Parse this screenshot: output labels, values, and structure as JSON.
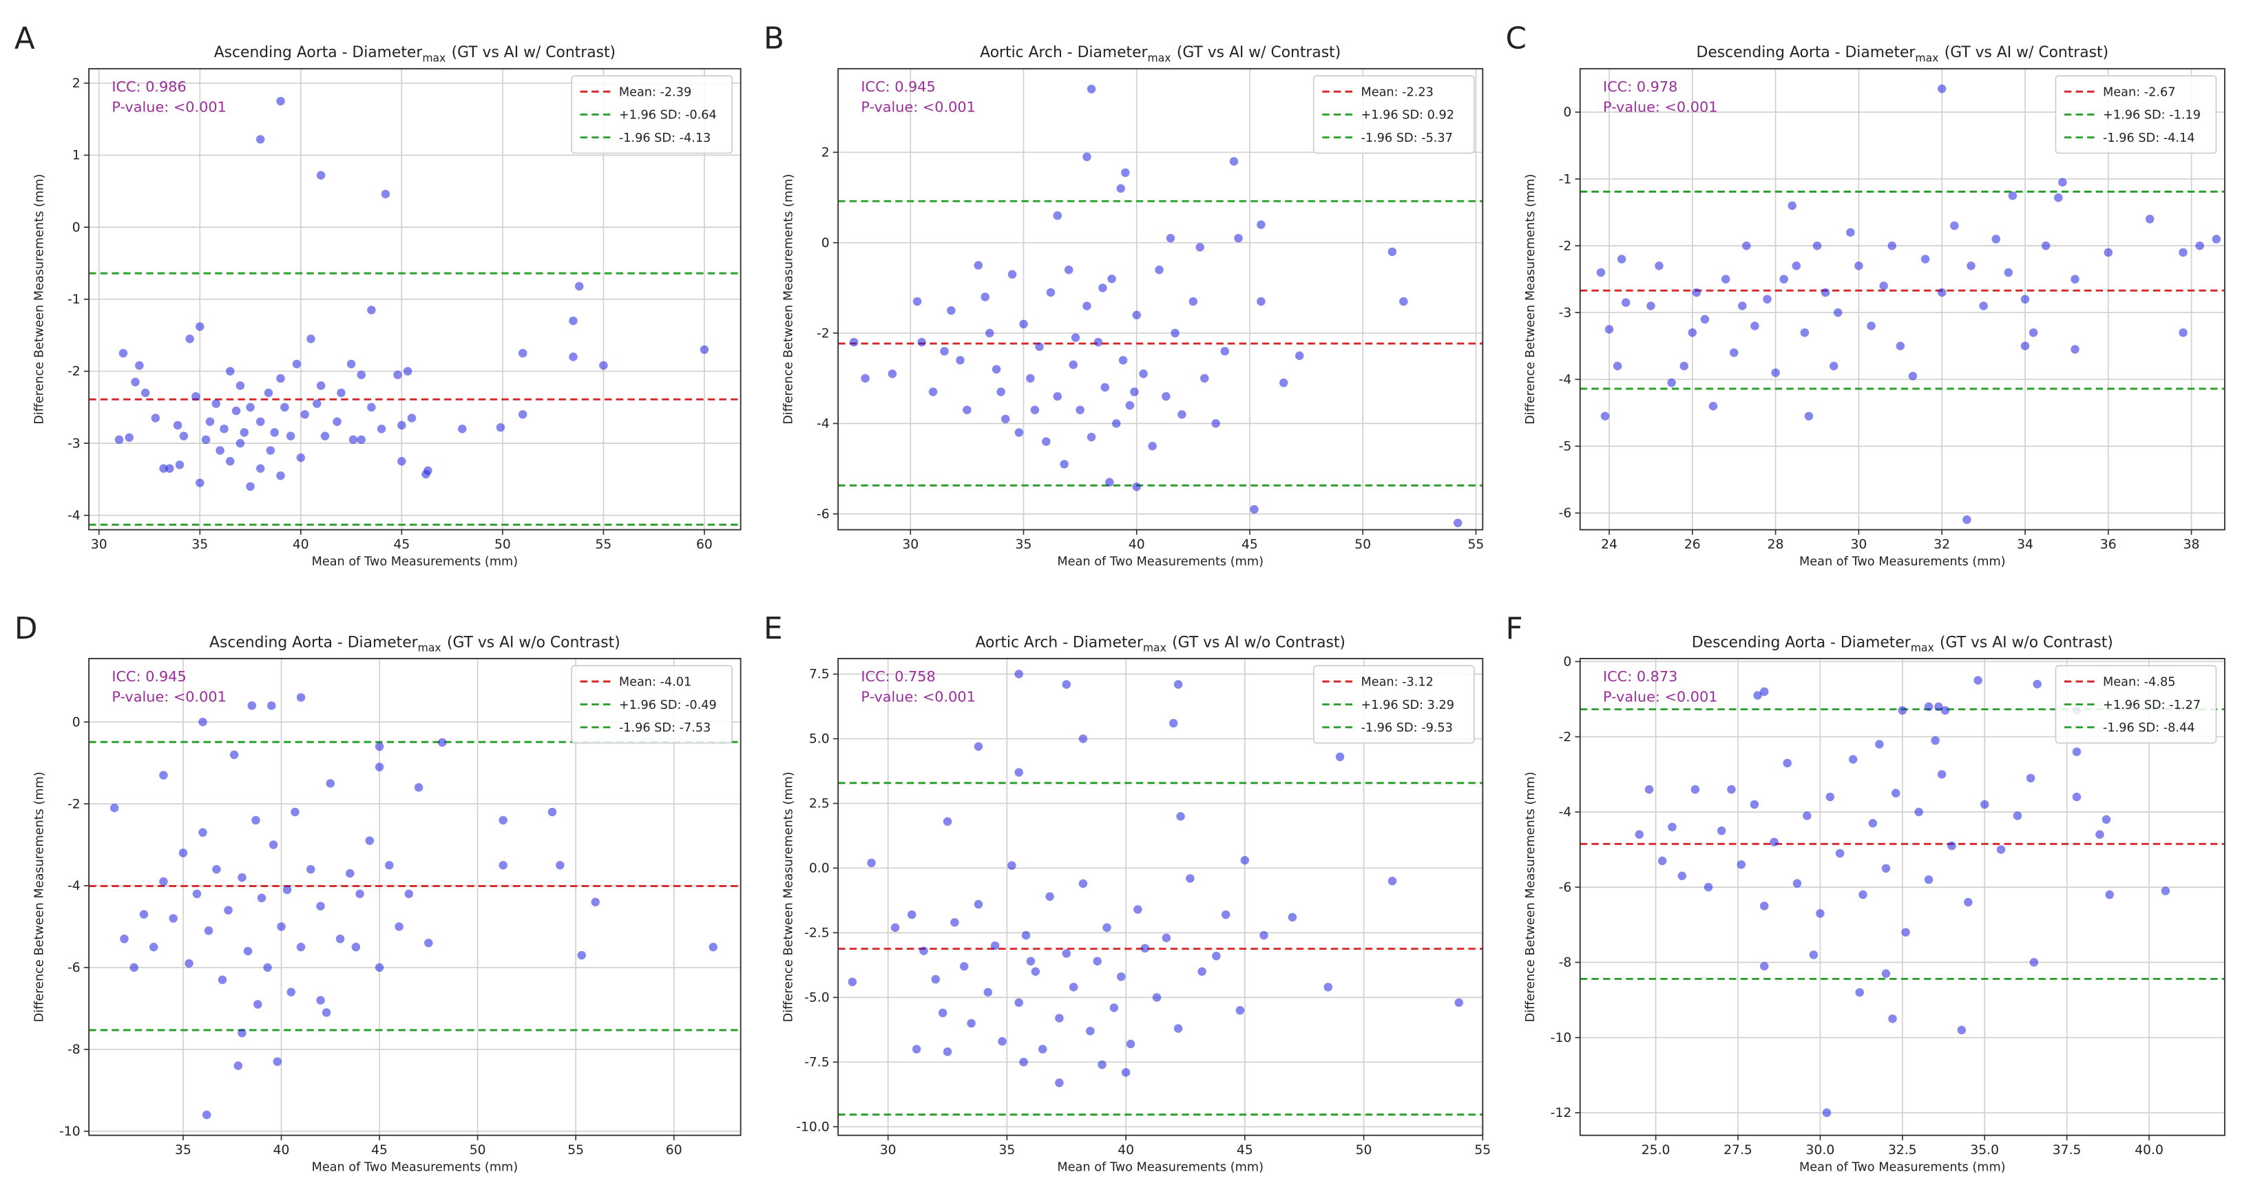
{
  "chart_data": [
    {
      "type": "scatter",
      "panel_label": "A",
      "title": "Ascending Aorta - Diameter",
      "title_subscript": "max",
      "title_suffix": "(GT vs AI w/ Contrast)",
      "x_label": "Mean of Two Measurements (mm)",
      "y_label": "Difference Between Measurements (mm)",
      "annotations": [
        "ICC: 0.986",
        "P-value: <0.001"
      ],
      "grid": true,
      "legend": "upper right",
      "color": "#2020e0",
      "xlim": [
        29.5,
        61.8
      ],
      "ylim": [
        -4.2,
        2.2
      ],
      "xticks": [
        30,
        35,
        40,
        45,
        50,
        55,
        60
      ],
      "yticks": [
        -4,
        -3,
        -2,
        -1,
        0,
        1,
        2
      ],
      "reference_lines": [
        {
          "name": "Mean: -2.39",
          "value": -2.39,
          "color": "#d62728"
        },
        {
          "name": "+1.96 SD: -0.64",
          "value": -0.64,
          "color": "#2ca02c"
        },
        {
          "name": "-1.96 SD: -4.13",
          "value": -4.13,
          "color": "#2ca02c"
        }
      ],
      "x": [
        38,
        39,
        41,
        44.2,
        53.8,
        53.5,
        43.5,
        60,
        55,
        51,
        53.5,
        51,
        49.9,
        48,
        46.3,
        46.2,
        45,
        34.5,
        35,
        31.2,
        32,
        31.8,
        32.3,
        31,
        31.5,
        32.8,
        33.2,
        33.5,
        34,
        35,
        35.3,
        36,
        36.5,
        37,
        37.5,
        38,
        38.5,
        39,
        39.5,
        40,
        34.8,
        35.8,
        36.5,
        37,
        37.5,
        38,
        38.4,
        39,
        39.2,
        39.8,
        40.5,
        41,
        41.8,
        42,
        42.5,
        43,
        43.5,
        44,
        44.8,
        45.3,
        45.5,
        45,
        36.2,
        37.2,
        38.7,
        40.2,
        41.2,
        43,
        33.9,
        34.2,
        35.5,
        36.8,
        40.8,
        42.6
      ],
      "values": [
        1.22,
        1.75,
        0.72,
        0.46,
        -0.82,
        -1.3,
        -1.15,
        -1.7,
        -1.92,
        -1.75,
        -1.8,
        -2.6,
        -2.78,
        -2.8,
        -3.38,
        -3.43,
        -3.25,
        -1.55,
        -1.38,
        -1.75,
        -1.92,
        -2.15,
        -2.3,
        -2.95,
        -2.92,
        -2.65,
        -3.35,
        -3.35,
        -3.3,
        -3.55,
        -2.95,
        -3.1,
        -3.25,
        -3,
        -3.6,
        -3.35,
        -3.1,
        -3.45,
        -2.9,
        -3.2,
        -2.35,
        -2.45,
        -2,
        -2.2,
        -2.5,
        -2.7,
        -2.3,
        -2.1,
        -2.5,
        -1.9,
        -1.55,
        -2.2,
        -2.7,
        -2.3,
        -1.9,
        -2.05,
        -2.5,
        -2.8,
        -2.05,
        -2,
        -2.65,
        -2.75,
        -2.8,
        -2.85,
        -2.85,
        -2.6,
        -2.9,
        -2.95,
        -2.75,
        -2.9,
        -2.7,
        -2.55,
        -2.45,
        -2.95
      ]
    },
    {
      "type": "scatter",
      "panel_label": "B",
      "title": "Aortic Arch - Diameter",
      "title_subscript": "max",
      "title_suffix": "(GT vs AI w/ Contrast)",
      "x_label": "Mean of Two Measurements (mm)",
      "y_label": "Difference Between Measurements (mm)",
      "annotations": [
        "ICC: 0.945",
        "P-value: <0.001"
      ],
      "grid": true,
      "legend": "upper right",
      "color": "#2020e0",
      "xlim": [
        26.8,
        55.3
      ],
      "ylim": [
        -6.35,
        3.85
      ],
      "xticks": [
        30,
        35,
        40,
        45,
        50,
        55
      ],
      "yticks": [
        -6,
        -4,
        -2,
        0,
        2
      ],
      "reference_lines": [
        {
          "name": "Mean: -2.23",
          "value": -2.23,
          "color": "#d62728"
        },
        {
          "name": "+1.96 SD: 0.92",
          "value": 0.92,
          "color": "#2ca02c"
        },
        {
          "name": "-1.96 SD: -5.37",
          "value": -5.37,
          "color": "#2ca02c"
        }
      ],
      "x": [
        38,
        37.8,
        39.5,
        39.3,
        44.3,
        36.5,
        41.5,
        42.8,
        44.5,
        45.5,
        45.5,
        51.3,
        51.8,
        47.2,
        46.5,
        45.2,
        54.2,
        40,
        38.8,
        27.5,
        28,
        29.2,
        30.3,
        30.5,
        31,
        31.5,
        31.8,
        32.2,
        32.5,
        33,
        33.3,
        33.8,
        34.2,
        34.5,
        34.8,
        35,
        35.3,
        35.7,
        36,
        36.2,
        36.5,
        36.8,
        37,
        37.2,
        37.5,
        37.8,
        38,
        38.3,
        38.6,
        38.9,
        39.1,
        39.4,
        39.7,
        40,
        40.3,
        40.7,
        41,
        41.3,
        41.7,
        42,
        42.5,
        43,
        43.5,
        43.9,
        33.5,
        34,
        35.5,
        37.3,
        38.5,
        39.9
      ],
      "values": [
        3.4,
        1.9,
        1.55,
        1.2,
        1.8,
        0.6,
        0.1,
        -0.1,
        0.1,
        0.4,
        -1.3,
        -0.2,
        -1.3,
        -2.5,
        -3.1,
        -5.9,
        -6.2,
        -5.4,
        -5.3,
        -2.2,
        -3,
        -2.9,
        -1.3,
        -2.2,
        -3.3,
        -2.4,
        -1.5,
        -2.6,
        -3.7,
        -0.5,
        -1.2,
        -2.8,
        -3.9,
        -0.7,
        -4.2,
        -1.8,
        -3,
        -2.3,
        -4.4,
        -1.1,
        -3.4,
        -4.9,
        -0.6,
        -2.7,
        -3.7,
        -1.4,
        -4.3,
        -2.2,
        -3.2,
        -0.8,
        -4,
        -2.6,
        -3.6,
        -1.6,
        -2.9,
        -4.5,
        -0.6,
        -3.4,
        -2,
        -3.8,
        -1.3,
        -3,
        -4,
        -2.4,
        -2,
        -3.3,
        -3.7,
        -2.1,
        -1,
        -3.3
      ]
    },
    {
      "type": "scatter",
      "panel_label": "C",
      "title": "Descending Aorta - Diameter",
      "title_subscript": "max",
      "title_suffix": "(GT vs AI w/ Contrast)",
      "x_label": "Mean of Two Measurements (mm)",
      "y_label": "Difference Between Measurements (mm)",
      "annotations": [
        "ICC: 0.978",
        "P-value: <0.001"
      ],
      "grid": true,
      "legend": "upper right",
      "color": "#2020e0",
      "xlim": [
        23.3,
        38.8
      ],
      "ylim": [
        -6.25,
        0.65
      ],
      "xticks": [
        24,
        26,
        28,
        30,
        32,
        34,
        36,
        38
      ],
      "yticks": [
        -6,
        -5,
        -4,
        -3,
        -2,
        -1,
        0
      ],
      "reference_lines": [
        {
          "name": "Mean: -2.67",
          "value": -2.67,
          "color": "#d62728"
        },
        {
          "name": "+1.96 SD: -1.19",
          "value": -1.19,
          "color": "#2ca02c"
        },
        {
          "name": "-1.96 SD: -4.14",
          "value": -4.14,
          "color": "#2ca02c"
        }
      ],
      "x": [
        32,
        34.9,
        34.8,
        33.7,
        37,
        38.2,
        37.8,
        38.6,
        37.8,
        36,
        35.2,
        35.2,
        34.2,
        34,
        32.6,
        28.8,
        23.9,
        24,
        24.2,
        23.8,
        24.3,
        24.4,
        25,
        25.2,
        25.5,
        25.8,
        26.1,
        26.3,
        26.5,
        26.8,
        27,
        27.3,
        27.5,
        27.8,
        28,
        28.2,
        28.4,
        28.7,
        29,
        29.2,
        29.5,
        29.8,
        30,
        30.3,
        30.6,
        31,
        31.3,
        31.6,
        32,
        32.3,
        32.7,
        33,
        33.3,
        33.6,
        34,
        34.5,
        28.5,
        27.2,
        26,
        30.8,
        29.4
      ],
      "values": [
        0.35,
        -1.05,
        -1.28,
        -1.25,
        -1.6,
        -2,
        -2.1,
        -1.9,
        -3.3,
        -2.1,
        -2.5,
        -3.55,
        -3.3,
        -3.5,
        -6.1,
        -4.55,
        -4.55,
        -3.25,
        -3.8,
        -2.4,
        -2.2,
        -2.85,
        -2.9,
        -2.3,
        -4.05,
        -3.8,
        -2.7,
        -3.1,
        -4.4,
        -2.5,
        -3.6,
        -2,
        -3.2,
        -2.8,
        -3.9,
        -2.5,
        -1.4,
        -3.3,
        -2,
        -2.7,
        -3,
        -1.8,
        -2.3,
        -3.2,
        -2.6,
        -3.5,
        -3.95,
        -2.2,
        -2.7,
        -1.7,
        -2.3,
        -2.9,
        -1.9,
        -2.4,
        -2.8,
        -2,
        -2.3,
        -2.9,
        -3.3,
        -2,
        -3.8
      ]
    },
    {
      "type": "scatter",
      "panel_label": "D",
      "title": "Ascending Aorta - Diameter",
      "title_subscript": "max",
      "title_suffix": "(GT vs AI w/o Contrast)",
      "x_label": "Mean of Two Measurements (mm)",
      "y_label": "Difference Between Measurements (mm)",
      "annotations": [
        "ICC: 0.945",
        "P-value: <0.001"
      ],
      "grid": true,
      "legend": "upper right",
      "color": "#2020e0",
      "xlim": [
        30.2,
        63.4
      ],
      "ylim": [
        -10.1,
        1.55
      ],
      "xticks": [
        35,
        40,
        45,
        50,
        55,
        60
      ],
      "yticks": [
        -10,
        -8,
        -6,
        -4,
        -2,
        0
      ],
      "reference_lines": [
        {
          "name": "Mean: -4.01",
          "value": -4.01,
          "color": "#d62728"
        },
        {
          "name": "+1.96 SD: -0.49",
          "value": -0.49,
          "color": "#2ca02c"
        },
        {
          "name": "-1.96 SD: -7.53",
          "value": -7.53,
          "color": "#2ca02c"
        }
      ],
      "x": [
        39.5,
        41,
        38.5,
        36,
        48.2,
        45,
        45,
        34,
        31.5,
        47,
        51.3,
        53.8,
        51.3,
        54.2,
        56,
        55.3,
        62,
        45,
        42,
        42.3,
        38,
        37.8,
        39.8,
        36.2,
        32,
        32.5,
        33,
        33.5,
        34,
        34.5,
        35,
        35.3,
        35.7,
        36,
        36.3,
        36.7,
        37,
        37.3,
        37.6,
        38,
        38.3,
        38.7,
        39,
        39.3,
        39.6,
        40,
        40.3,
        40.7,
        41,
        41.5,
        42,
        42.5,
        43,
        43.5,
        44,
        44.5,
        45.5,
        46,
        46.5,
        47.5,
        40.5,
        38.8,
        43.8
      ],
      "values": [
        0.4,
        0.6,
        0.4,
        0,
        -0.5,
        -0.6,
        -1.1,
        -1.3,
        -2.1,
        -1.6,
        -2.4,
        -2.2,
        -3.5,
        -3.5,
        -4.4,
        -5.7,
        -5.5,
        -6,
        -6.8,
        -7.1,
        -7.6,
        -8.4,
        -8.3,
        -9.6,
        -5.3,
        -6,
        -4.7,
        -5.5,
        -3.9,
        -4.8,
        -3.2,
        -5.9,
        -4.2,
        -2.7,
        -5.1,
        -3.6,
        -6.3,
        -4.6,
        -0.8,
        -3.8,
        -5.6,
        -2.4,
        -4.3,
        -6,
        -3,
        -5,
        -4.1,
        -2.2,
        -5.5,
        -3.6,
        -4.5,
        -1.5,
        -5.3,
        -3.7,
        -4.2,
        -2.9,
        -3.5,
        -5,
        -4.2,
        -5.4,
        -6.6,
        -6.9,
        -5.5
      ]
    },
    {
      "type": "scatter",
      "panel_label": "E",
      "title": "Aortic Arch - Diameter",
      "title_subscript": "max",
      "title_suffix": "(GT vs AI w/o Contrast)",
      "x_label": "Mean of Two Measurements (mm)",
      "y_label": "Difference Between Measurements (mm)",
      "annotations": [
        "ICC: 0.758",
        "P-value: <0.001"
      ],
      "grid": true,
      "legend": "upper right",
      "color": "#2020e0",
      "xlim": [
        27.9,
        55
      ],
      "ylim": [
        -10.33,
        8.1
      ],
      "xticks": [
        30,
        35,
        40,
        45,
        50,
        55
      ],
      "yticks": [
        {
          "value": -10,
          "label": "-10.0"
        },
        {
          "value": -7.5,
          "label": "-7.5"
        },
        {
          "value": -5,
          "label": "-5.0"
        },
        {
          "value": -2.5,
          "label": "-2.5"
        },
        {
          "value": 0,
          "label": "0.0"
        },
        {
          "value": 2.5,
          "label": "2.5"
        },
        {
          "value": 5,
          "label": "5.0"
        },
        {
          "value": 7.5,
          "label": "7.5"
        }
      ],
      "reference_lines": [
        {
          "name": "Mean: -3.12",
          "value": -3.12,
          "color": "#d62728"
        },
        {
          "name": "+1.96 SD: 3.29",
          "value": 3.29,
          "color": "#2ca02c"
        },
        {
          "name": "-1.96 SD: -9.53",
          "value": -9.53,
          "color": "#2ca02c"
        }
      ],
      "x": [
        35.5,
        37.5,
        42.2,
        38.2,
        42,
        49,
        33.8,
        35.5,
        32.5,
        29.3,
        30.3,
        28.5,
        31.2,
        32.5,
        35.7,
        37.2,
        40,
        45,
        45.8,
        47,
        51.2,
        54,
        48.5,
        44.2,
        42.3,
        31,
        31.5,
        32,
        32.3,
        32.8,
        33.2,
        33.5,
        33.8,
        34.2,
        34.5,
        34.8,
        35.2,
        35.5,
        35.8,
        36.2,
        36.5,
        36.8,
        37.2,
        37.5,
        37.8,
        38.2,
        38.5,
        38.8,
        39.2,
        39.5,
        39.8,
        40.2,
        40.5,
        40.8,
        41.3,
        41.7,
        42.2,
        42.7,
        43.2,
        43.8,
        44.8,
        36,
        39
      ],
      "values": [
        7.5,
        7.1,
        7.1,
        5,
        5.6,
        4.3,
        4.7,
        3.7,
        1.8,
        0.2,
        -2.3,
        -4.4,
        -7,
        -7.1,
        -7.5,
        -8.3,
        -7.9,
        0.3,
        -2.6,
        -1.9,
        -0.5,
        -5.2,
        -4.6,
        -1.8,
        2,
        -1.8,
        -3.2,
        -4.3,
        -5.6,
        -2.1,
        -3.8,
        -6,
        -1.4,
        -4.8,
        -3,
        -6.7,
        0.1,
        -5.2,
        -2.6,
        -4,
        -7,
        -1.1,
        -5.8,
        -3.3,
        -4.6,
        -0.6,
        -6.3,
        -3.6,
        -2.3,
        -5.4,
        -4.2,
        -6.8,
        -1.6,
        -3.1,
        -5,
        -2.7,
        -6.2,
        -0.4,
        -4,
        -3.4,
        -5.5,
        -3.6,
        -7.6
      ]
    },
    {
      "type": "scatter",
      "panel_label": "F",
      "title": "Descending Aorta - Diameter",
      "title_subscript": "max",
      "title_suffix": "(GT vs AI w/o Contrast)",
      "x_label": "Mean of Two Measurements (mm)",
      "y_label": "Difference Between Measurements (mm)",
      "annotations": [
        "ICC: 0.873",
        "P-value: <0.001"
      ],
      "grid": true,
      "legend": "upper right",
      "color": "#2020e0",
      "xlim": [
        22.7,
        42.3
      ],
      "ylim": [
        -12.6,
        0.08
      ],
      "xticks": [
        {
          "value": 25,
          "label": "25.0"
        },
        {
          "value": 27.5,
          "label": "27.5"
        },
        {
          "value": 30,
          "label": "30.0"
        },
        {
          "value": 32.5,
          "label": "32.5"
        },
        {
          "value": 35,
          "label": "35.0"
        },
        {
          "value": 37.5,
          "label": "37.5"
        },
        {
          "value": 40,
          "label": "40.0"
        }
      ],
      "yticks": [
        -12,
        -10,
        -8,
        -6,
        -4,
        -2,
        0
      ],
      "reference_lines": [
        {
          "name": "Mean: -4.85",
          "value": -4.85,
          "color": "#d62728"
        },
        {
          "name": "+1.96 SD: -1.27",
          "value": -1.27,
          "color": "#2ca02c"
        },
        {
          "name": "-1.96 SD: -8.44",
          "value": -8.44,
          "color": "#2ca02c"
        }
      ],
      "x": [
        36.6,
        34.8,
        28.3,
        28.1,
        33.3,
        33.8,
        33.6,
        32.5,
        37.8,
        31.8,
        33.5,
        37.8,
        37.8,
        38.7,
        38.5,
        38.8,
        40.5,
        36.5,
        34.3,
        32.2,
        32,
        30.2,
        28.3,
        24.5,
        24.8,
        25.2,
        25.5,
        25.8,
        26.2,
        26.6,
        27,
        27.3,
        27.6,
        28,
        28.3,
        28.6,
        29,
        29.3,
        29.6,
        30,
        30.3,
        30.6,
        31,
        31.3,
        31.6,
        32,
        32.3,
        32.6,
        33,
        33.3,
        33.7,
        34,
        34.5,
        35,
        35.5,
        36,
        36.4,
        29.8,
        31.2
      ],
      "values": [
        -0.6,
        -0.5,
        -0.8,
        -0.9,
        -1.2,
        -1.3,
        -1.2,
        -1.3,
        -1.3,
        -2.2,
        -2.1,
        -2.4,
        -3.6,
        -4.2,
        -4.6,
        -6.2,
        -6.1,
        -8,
        -9.8,
        -9.5,
        -8.3,
        -12,
        -8.1,
        -4.6,
        -3.4,
        -5.3,
        -4.4,
        -5.7,
        -3.4,
        -6,
        -4.5,
        -3.4,
        -5.4,
        -3.8,
        -6.5,
        -4.8,
        -2.7,
        -5.9,
        -4.1,
        -6.7,
        -3.6,
        -5.1,
        -2.6,
        -6.2,
        -4.3,
        -5.5,
        -3.5,
        -7.2,
        -4,
        -5.8,
        -3,
        -4.9,
        -6.4,
        -3.8,
        -5,
        -4.1,
        -3.1,
        -7.8,
        -8.8
      ]
    }
  ]
}
